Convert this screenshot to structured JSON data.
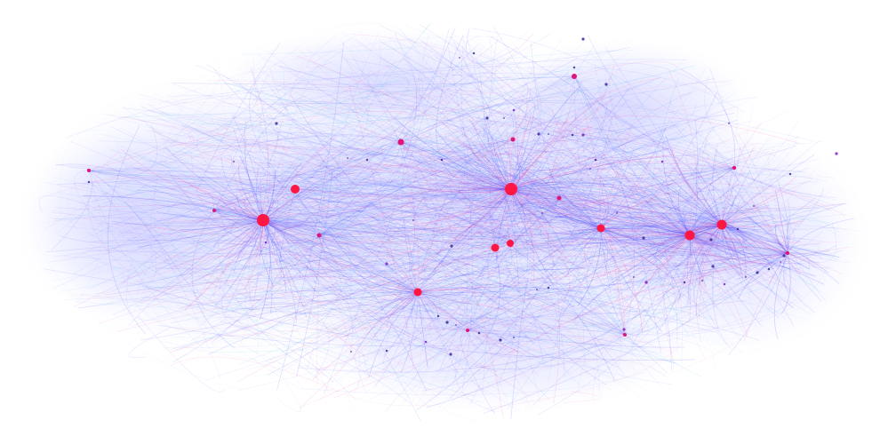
{
  "colors": {
    "background": "#ffffff",
    "edge_blue": "#3b3bff",
    "edge_cyan": "#2fb6e0",
    "edge_pink": "#ff3aa0",
    "hub_node": "#ff1744",
    "mid_node": "#e0147a",
    "small_node": "#7a1fc9",
    "tiny_node": "#3a2a9a"
  },
  "graph": {
    "type": "network-bundled-edges",
    "hub_count": 20,
    "hubs": [
      {
        "id": "h1",
        "size": "large",
        "role": "hub"
      },
      {
        "id": "h2",
        "size": "large",
        "role": "hub"
      },
      {
        "id": "h3",
        "size": "medium",
        "role": "hub"
      },
      {
        "id": "h4",
        "size": "medium",
        "role": "hub"
      },
      {
        "id": "h5",
        "size": "medium",
        "role": "hub"
      },
      {
        "id": "h6",
        "size": "medium",
        "role": "hub"
      },
      {
        "id": "h7",
        "size": "medium",
        "role": "hub"
      },
      {
        "id": "h8",
        "size": "medium",
        "role": "hub"
      },
      {
        "id": "h9",
        "size": "medium",
        "role": "hub"
      },
      {
        "id": "h10",
        "size": "small",
        "role": "hub"
      },
      {
        "id": "h11",
        "size": "small",
        "role": "hub"
      },
      {
        "id": "h12",
        "size": "small",
        "role": "hub"
      },
      {
        "id": "h13",
        "size": "small",
        "role": "hub"
      },
      {
        "id": "h14",
        "size": "small",
        "role": "hub"
      },
      {
        "id": "h15",
        "size": "small",
        "role": "hub"
      },
      {
        "id": "h16",
        "size": "small",
        "role": "hub"
      },
      {
        "id": "h17",
        "size": "small",
        "role": "hub"
      },
      {
        "id": "h18",
        "size": "small",
        "role": "hub"
      },
      {
        "id": "h19",
        "size": "small",
        "role": "hub"
      },
      {
        "id": "h20",
        "size": "small",
        "role": "hub"
      }
    ]
  }
}
